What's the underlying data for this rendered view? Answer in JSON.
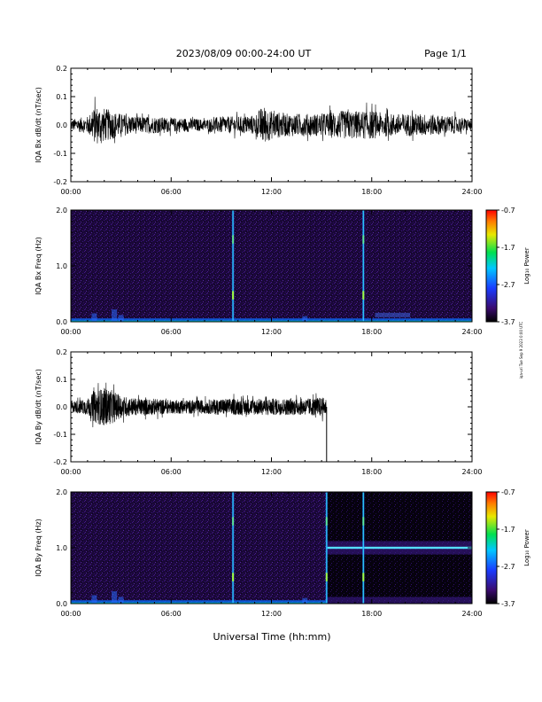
{
  "header": {
    "date_range": "2023/08/09  00:00-24:00 UT",
    "page": "Page 1/1"
  },
  "x_axis": {
    "ticks": [
      "00:00",
      "06:00",
      "12:00",
      "18:00",
      "24:00"
    ],
    "label": "Universal Time (hh:mm)"
  },
  "side_note": "iqa-uri Tue Sep 9 2023 0:00 UTC",
  "colorbar": {
    "ticks": [
      "-0.7",
      "-1.7",
      "-2.7",
      "-3.7"
    ],
    "label": "Log₁₀ Power"
  },
  "chart_data": [
    {
      "type": "line",
      "ylabel": "IQA Bx dB/dt (nT/sec)",
      "ylim": [
        -0.2,
        0.2
      ],
      "xlim": [
        0,
        24
      ],
      "yticks": [
        "0.2",
        "0.1",
        "0.0",
        "-0.1",
        "-0.2"
      ],
      "series": [
        {
          "x": [
            0,
            1,
            1.5,
            2,
            2.5,
            3,
            4,
            5,
            6,
            7,
            8,
            9,
            10,
            11,
            11.5,
            12,
            13,
            14,
            15,
            16,
            17,
            18,
            19,
            20,
            21,
            22,
            23,
            24
          ],
          "amplitude": [
            0.02,
            0.03,
            0.07,
            0.06,
            0.05,
            0.04,
            0.03,
            0.03,
            0.025,
            0.025,
            0.02,
            0.03,
            0.03,
            0.035,
            0.07,
            0.05,
            0.04,
            0.04,
            0.04,
            0.05,
            0.05,
            0.05,
            0.04,
            0.04,
            0.04,
            0.035,
            0.03,
            0.02
          ]
        }
      ]
    },
    {
      "type": "heatmap",
      "ylabel": "IQA Bx Freq (Hz)",
      "ylim": [
        0.0,
        2.0
      ],
      "xlim": [
        0,
        24
      ],
      "yticks": [
        "2.0",
        "1.0",
        "0.0"
      ],
      "zlim": [
        -3.7,
        -0.7
      ],
      "vertical_bursts_hours": [
        9.7,
        17.5
      ]
    },
    {
      "type": "line",
      "ylabel": "IQA By dB/dt (nT/sec)",
      "ylim": [
        -0.2,
        0.2
      ],
      "xlim": [
        0,
        24
      ],
      "yticks": [
        "0.2",
        "0.1",
        "0.0",
        "-0.1",
        "-0.2"
      ],
      "data_end_hour": 15.3,
      "series": [
        {
          "x": [
            0,
            1,
            1.5,
            2,
            2.5,
            3,
            4,
            5,
            6,
            7,
            8,
            9,
            10,
            11,
            12,
            13,
            14,
            15,
            15.3
          ],
          "amplitude": [
            0.02,
            0.03,
            0.06,
            0.07,
            0.06,
            0.04,
            0.03,
            0.03,
            0.025,
            0.025,
            0.025,
            0.03,
            0.03,
            0.03,
            0.03,
            0.03,
            0.03,
            0.035,
            0.03
          ]
        }
      ]
    },
    {
      "type": "heatmap",
      "ylabel": "IQA By Freq (Hz)",
      "ylim": [
        0.0,
        2.0
      ],
      "xlim": [
        0,
        24
      ],
      "yticks": [
        "2.0",
        "1.0",
        "0.0"
      ],
      "zlim": [
        -3.7,
        -0.7
      ],
      "vertical_bursts_hours": [
        9.7,
        15.3,
        17.5
      ],
      "horizontal_line_hz": 1.0,
      "horizontal_line_from_hour": 15.3
    }
  ]
}
